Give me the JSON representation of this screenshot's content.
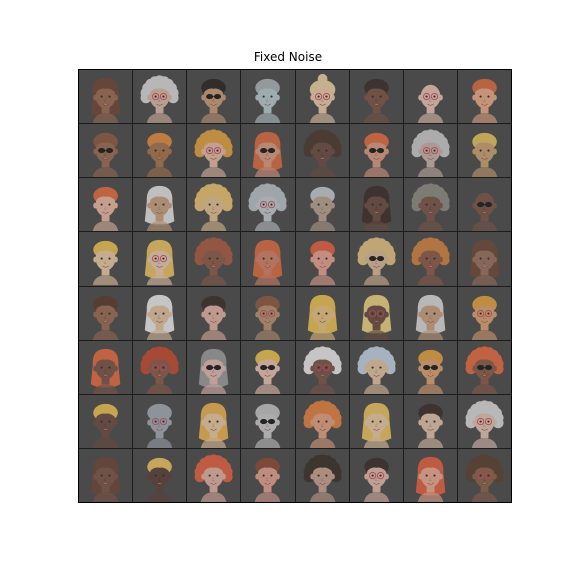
{
  "title": "Fixed Noise",
  "grid": {
    "rows": 8,
    "cols": 8
  },
  "faces": [
    {
      "skin": "#9a6a52",
      "hair": "#6e4636",
      "style": "long",
      "acc": "none"
    },
    {
      "skin": "#d8b8a4",
      "hair": "#d6d6d6",
      "style": "curly",
      "acc": "glasses"
    },
    {
      "skin": "#c89a78",
      "hair": "#2c2624",
      "style": "short",
      "acc": "shades"
    },
    {
      "skin": "#b8c8cc",
      "hair": "#a8b0b4",
      "style": "short",
      "acc": "none"
    },
    {
      "skin": "#e8c8a8",
      "hair": "#e8d0a0",
      "style": "bun",
      "acc": "glasses"
    },
    {
      "skin": "#7a5444",
      "hair": "#3a2e2a",
      "style": "short",
      "acc": "none"
    },
    {
      "skin": "#e4c0b0",
      "hair": "#efefef",
      "style": "bald",
      "acc": "glasses"
    },
    {
      "skin": "#e8a888",
      "hair": "#d86a40",
      "style": "short",
      "acc": "none"
    },
    {
      "skin": "#9a6a52",
      "hair": "#8a5a40",
      "style": "short",
      "acc": "shades"
    },
    {
      "skin": "#a8724c",
      "hair": "#e08a40",
      "style": "short",
      "acc": "none"
    },
    {
      "skin": "#e4b8a4",
      "hair": "#e0a040",
      "style": "curly",
      "acc": "glasses"
    },
    {
      "skin": "#d89a80",
      "hair": "#d86a40",
      "style": "long",
      "acc": "shades"
    },
    {
      "skin": "#6a4a40",
      "hair": "#4a3830",
      "style": "curly",
      "acc": "none"
    },
    {
      "skin": "#d89a80",
      "hair": "#e06a40",
      "style": "short",
      "acc": "shades"
    },
    {
      "skin": "#c8b0a8",
      "hair": "#c8c8c8",
      "style": "curly",
      "acc": "glasses"
    },
    {
      "skin": "#c8a070",
      "hair": "#e0c060",
      "style": "short",
      "acc": "none"
    },
    {
      "skin": "#e8b8a0",
      "hair": "#e06a40",
      "style": "short",
      "acc": "none"
    },
    {
      "skin": "#c8a080",
      "hair": "#e0e0e0",
      "style": "long",
      "acc": "none"
    },
    {
      "skin": "#e0c090",
      "hair": "#e8c070",
      "style": "curly",
      "acc": "none"
    },
    {
      "skin": "#c0c8cc",
      "hair": "#b8c0c4",
      "style": "curly",
      "acc": "glasses"
    },
    {
      "skin": "#b8a090",
      "hair": "#c0c8cc",
      "style": "short",
      "acc": "none"
    },
    {
      "skin": "#6a4a40",
      "hair": "#3a2e2a",
      "style": "long",
      "acc": "none"
    },
    {
      "skin": "#7a5448",
      "hair": "#8a8a80",
      "style": "curly",
      "acc": "none"
    },
    {
      "skin": "#7a5448",
      "hair": "#6a4a40",
      "style": "bald",
      "acc": "shades"
    },
    {
      "skin": "#e8c8a0",
      "hair": "#e8c050",
      "style": "short",
      "acc": "none"
    },
    {
      "skin": "#e8c8b0",
      "hair": "#e8c060",
      "style": "long",
      "acc": "glasses"
    },
    {
      "skin": "#8a5a48",
      "hair": "#a85a40",
      "style": "curly",
      "acc": "none"
    },
    {
      "skin": "#d08068",
      "hair": "#d86a40",
      "style": "long",
      "acc": "none"
    },
    {
      "skin": "#e8a090",
      "hair": "#e06040",
      "style": "short",
      "acc": "none"
    },
    {
      "skin": "#d8b898",
      "hair": "#e0c080",
      "style": "curly",
      "acc": "shades"
    },
    {
      "skin": "#8a5a48",
      "hair": "#d08040",
      "style": "curly",
      "acc": "none"
    },
    {
      "skin": "#9a7060",
      "hair": "#6a4838",
      "style": "long",
      "acc": "none"
    },
    {
      "skin": "#9a6a52",
      "hair": "#5a3a2c",
      "style": "short",
      "acc": "none"
    },
    {
      "skin": "#e0c0a0",
      "hair": "#e8e8e8",
      "style": "long",
      "acc": "none"
    },
    {
      "skin": "#e0b0a0",
      "hair": "#3a2e2a",
      "style": "short",
      "acc": "none"
    },
    {
      "skin": "#b89070",
      "hair": "#8a5a40",
      "style": "short",
      "acc": "glasses"
    },
    {
      "skin": "#e8c080",
      "hair": "#e8c050",
      "style": "long",
      "acc": "none"
    },
    {
      "skin": "#6a4a40",
      "hair": "#e8d080",
      "style": "long",
      "acc": "glasses"
    },
    {
      "skin": "#c8a080",
      "hair": "#d8d8d8",
      "style": "long",
      "acc": "none"
    },
    {
      "skin": "#d8a070",
      "hair": "#e0a040",
      "style": "short",
      "acc": "glasses"
    },
    {
      "skin": "#7a5448",
      "hair": "#e06a40",
      "style": "long",
      "acc": "none"
    },
    {
      "skin": "#8a5a48",
      "hair": "#c04a30",
      "style": "curly",
      "acc": "glasses"
    },
    {
      "skin": "#e0b8b0",
      "hair": "#9a9a9a",
      "style": "long",
      "acc": "shades"
    },
    {
      "skin": "#e8c0b0",
      "hair": "#e8c050",
      "style": "short",
      "acc": "shades"
    },
    {
      "skin": "#7a5448",
      "hair": "#e8e8e8",
      "style": "curly",
      "acc": "glasses"
    },
    {
      "skin": "#e0c0a0",
      "hair": "#c0d0e0",
      "style": "curly",
      "acc": "none"
    },
    {
      "skin": "#d8a070",
      "hair": "#e0a040",
      "style": "short",
      "acc": "shades"
    },
    {
      "skin": "#8a5a48",
      "hair": "#e06a40",
      "style": "curly",
      "acc": "shades"
    },
    {
      "skin": "#6a4a40",
      "hair": "#e8c050",
      "style": "short",
      "acc": "none"
    },
    {
      "skin": "#a0a8b0",
      "hair": "#a0a8b0",
      "style": "short",
      "acc": "glasses"
    },
    {
      "skin": "#e8c8a0",
      "hair": "#e8b050",
      "style": "long",
      "acc": "none"
    },
    {
      "skin": "#c8c8c8",
      "hair": "#c0c0c0",
      "style": "short",
      "acc": "shades"
    },
    {
      "skin": "#e0a080",
      "hair": "#e08040",
      "style": "curly",
      "acc": "none"
    },
    {
      "skin": "#e8c8a0",
      "hair": "#e8c060",
      "style": "long",
      "acc": "none"
    },
    {
      "skin": "#e0c0a8",
      "hair": "#3a2e2a",
      "style": "short",
      "acc": "none"
    },
    {
      "skin": "#e0c0b0",
      "hair": "#d8d8d8",
      "style": "curly",
      "acc": "glasses"
    },
    {
      "skin": "#7a5448",
      "hair": "#6a4638",
      "style": "long",
      "acc": "none"
    },
    {
      "skin": "#5a4038",
      "hair": "#e8c060",
      "style": "short",
      "acc": "none"
    },
    {
      "skin": "#e0b0a0",
      "hair": "#e06040",
      "style": "curly",
      "acc": "none"
    },
    {
      "skin": "#e0a090",
      "hair": "#8a4a38",
      "style": "short",
      "acc": "none"
    },
    {
      "skin": "#c8a090",
      "hair": "#3a3028",
      "style": "curly",
      "acc": "none"
    },
    {
      "skin": "#e0b8a8",
      "hair": "#3a2e2a",
      "style": "short",
      "acc": "glasses"
    },
    {
      "skin": "#e8a890",
      "hair": "#e06040",
      "style": "long",
      "acc": "none"
    },
    {
      "skin": "#8a6048",
      "hair": "#5a4030",
      "style": "curly",
      "acc": "glasses"
    }
  ]
}
